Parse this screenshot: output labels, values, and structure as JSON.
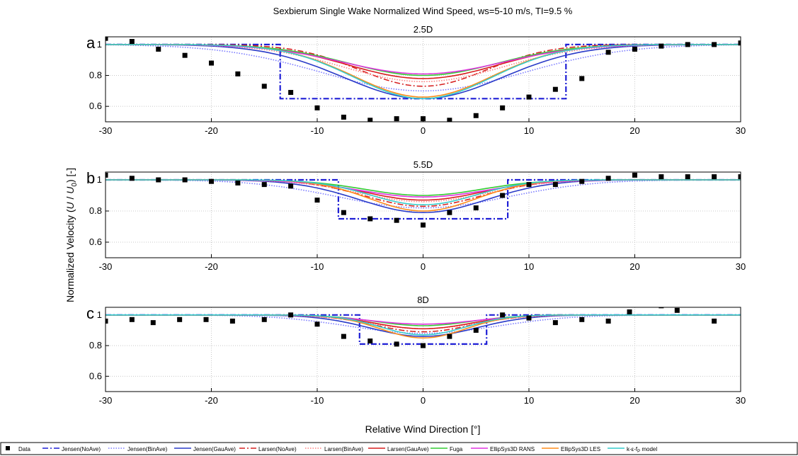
{
  "figure": {
    "title": "Sexbierum Single Wake Normalized Wind Speed, ws=5-10 m/s, TI=9.5 %",
    "ylabel_prefix": "Normalized Velocity (",
    "ylabel_u": "U",
    "ylabel_mid": " / ",
    "ylabel_u0": "U",
    "ylabel_sub": "0",
    "ylabel_suffix": ") [-]",
    "xlabel": "Relative Wind Direction [°]"
  },
  "legend": [
    {
      "label": "Data",
      "color": "#000000",
      "style": "marker"
    },
    {
      "label": "Jensen(NoAve)",
      "color": "#1f1fd6",
      "style": "dashdot"
    },
    {
      "label": "Jensen(BinAve)",
      "color": "#7a7aff",
      "style": "dot"
    },
    {
      "label": "Jensen(GauAve)",
      "color": "#2a3bc8",
      "style": "solid"
    },
    {
      "label": "Larsen(NoAve)",
      "color": "#d62020",
      "style": "dashdot"
    },
    {
      "label": "Larsen(BinAve)",
      "color": "#ff8080",
      "style": "dot"
    },
    {
      "label": "Larsen(GauAve)",
      "color": "#d81e1e",
      "style": "solid"
    },
    {
      "label": "Fuga",
      "color": "#33cc33",
      "style": "solid"
    },
    {
      "label": "EllipSys3D RANS",
      "color": "#e033e0",
      "style": "solid"
    },
    {
      "label": "EllipSys3D LES",
      "color": "#ff8c1a",
      "style": "solid"
    },
    {
      "label": "k-ε-fP model",
      "label_main": "k-ε-f",
      "label_sub": "P",
      "label_end": " model",
      "color": "#33cccc",
      "style": "solid"
    }
  ],
  "chart_data": [
    {
      "type": "line",
      "panel_letter": "a",
      "title": "2.5D",
      "xlim": [
        -30,
        30
      ],
      "ylim": [
        0.5,
        1.05
      ],
      "xticks": [
        -30,
        -20,
        -10,
        0,
        10,
        20,
        30
      ],
      "yticks": [
        0.6,
        0.8,
        1
      ],
      "grid": true,
      "measured": {
        "x": [
          -30,
          -27.5,
          -25,
          -22.5,
          -20,
          -17.5,
          -15,
          -12.5,
          -10,
          -7.5,
          -5,
          -2.5,
          0,
          2.5,
          5,
          7.5,
          10,
          12.5,
          15,
          17.5,
          20,
          22.5,
          25,
          27.5,
          30
        ],
        "y": [
          1.04,
          1.02,
          0.97,
          0.93,
          0.88,
          0.81,
          0.73,
          0.69,
          0.59,
          0.53,
          0.51,
          0.52,
          0.52,
          0.51,
          0.54,
          0.59,
          0.66,
          0.71,
          0.78,
          0.95,
          0.97,
          0.99,
          1.0,
          1.0,
          1.01
        ]
      },
      "series": [
        {
          "name": "Jensen(NoAve)",
          "kind": "step",
          "depth": 0.65,
          "half_width": 13.5
        },
        {
          "name": "Jensen(BinAve)",
          "kind": "gauss",
          "depth": 0.7,
          "sigma": 9.5
        },
        {
          "name": "Jensen(GauAve)",
          "kind": "gauss",
          "depth": 0.65,
          "sigma": 7.5
        },
        {
          "name": "Larsen(NoAve)",
          "kind": "gauss",
          "depth": 0.73,
          "sigma": 6.0
        },
        {
          "name": "Larsen(BinAve)",
          "kind": "gauss",
          "depth": 0.76,
          "sigma": 7.5
        },
        {
          "name": "Larsen(GauAve)",
          "kind": "gauss",
          "depth": 0.78,
          "sigma": 7.0
        },
        {
          "name": "Fuga",
          "kind": "gauss",
          "depth": 0.8,
          "sigma": 7.0
        },
        {
          "name": "EllipSys3D RANS",
          "kind": "gauss",
          "depth": 0.81,
          "sigma": 7.5
        },
        {
          "name": "EllipSys3D LES",
          "kind": "gauss",
          "depth": 0.66,
          "sigma": 6.5
        },
        {
          "name": "k-ε-fP model",
          "kind": "gauss",
          "depth": 0.65,
          "sigma": 6.5
        }
      ]
    },
    {
      "type": "line",
      "panel_letter": "b",
      "title": "5.5D",
      "xlim": [
        -30,
        30
      ],
      "ylim": [
        0.5,
        1.05
      ],
      "xticks": [
        -30,
        -20,
        -10,
        0,
        10,
        20,
        30
      ],
      "yticks": [
        0.6,
        0.8,
        1
      ],
      "grid": true,
      "measured": {
        "x": [
          -30,
          -27.5,
          -25,
          -22.5,
          -20,
          -17.5,
          -15,
          -12.5,
          -10,
          -7.5,
          -5,
          -2.5,
          0,
          2.5,
          5,
          7.5,
          10,
          12.5,
          15,
          17.5,
          20,
          22.5,
          25,
          27.5,
          30
        ],
        "y": [
          1.03,
          1.01,
          1.0,
          1.0,
          0.99,
          0.98,
          0.97,
          0.96,
          0.87,
          0.79,
          0.75,
          0.74,
          0.71,
          0.79,
          0.82,
          0.9,
          0.97,
          0.97,
          0.99,
          1.01,
          1.03,
          1.02,
          1.02,
          1.02,
          1.02
        ]
      },
      "series": [
        {
          "name": "Jensen(NoAve)",
          "kind": "step",
          "depth": 0.75,
          "half_width": 8.0
        },
        {
          "name": "Jensen(BinAve)",
          "kind": "gauss",
          "depth": 0.82,
          "sigma": 8.0
        },
        {
          "name": "Jensen(GauAve)",
          "kind": "gauss",
          "depth": 0.79,
          "sigma": 6.0
        },
        {
          "name": "Larsen(NoAve)",
          "kind": "gauss",
          "depth": 0.83,
          "sigma": 5.5
        },
        {
          "name": "Larsen(BinAve)",
          "kind": "gauss",
          "depth": 0.86,
          "sigma": 6.0
        },
        {
          "name": "Larsen(GauAve)",
          "kind": "gauss",
          "depth": 0.87,
          "sigma": 5.5
        },
        {
          "name": "Fuga",
          "kind": "gauss",
          "depth": 0.9,
          "sigma": 5.5
        },
        {
          "name": "EllipSys3D RANS",
          "kind": "gauss",
          "depth": 0.89,
          "sigma": 6.0
        },
        {
          "name": "EllipSys3D LES",
          "kind": "gauss",
          "depth": 0.8,
          "sigma": 5.0
        },
        {
          "name": "k-ε-fP model",
          "kind": "gauss",
          "depth": 0.84,
          "sigma": 5.0
        }
      ]
    },
    {
      "type": "line",
      "panel_letter": "c",
      "title": "8D",
      "xlim": [
        -30,
        30
      ],
      "ylim": [
        0.5,
        1.05
      ],
      "xticks": [
        -30,
        -20,
        -10,
        0,
        10,
        20,
        30
      ],
      "yticks": [
        0.6,
        0.8,
        1
      ],
      "grid": true,
      "measured": {
        "x": [
          -30,
          -27.5,
          -25.5,
          -23,
          -20.5,
          -18,
          -15,
          -12.5,
          -10,
          -7.5,
          -5,
          -2.5,
          0,
          2.5,
          5,
          7.5,
          10,
          12.5,
          15,
          17.5,
          19.5,
          22.5,
          24,
          27.5
        ],
        "y": [
          0.96,
          0.97,
          0.95,
          0.97,
          0.97,
          0.96,
          0.97,
          1.0,
          0.94,
          0.86,
          0.83,
          0.81,
          0.8,
          0.86,
          0.9,
          1.0,
          0.98,
          0.95,
          0.97,
          0.96,
          1.02,
          1.06,
          1.03,
          0.96
        ]
      },
      "series": [
        {
          "name": "Jensen(NoAve)",
          "kind": "step",
          "depth": 0.81,
          "half_width": 6.0
        },
        {
          "name": "Jensen(BinAve)",
          "kind": "gauss",
          "depth": 0.88,
          "sigma": 7.0
        },
        {
          "name": "Jensen(GauAve)",
          "kind": "gauss",
          "depth": 0.86,
          "sigma": 5.0
        },
        {
          "name": "Larsen(NoAve)",
          "kind": "gauss",
          "depth": 0.89,
          "sigma": 4.5
        },
        {
          "name": "Larsen(BinAve)",
          "kind": "gauss",
          "depth": 0.91,
          "sigma": 5.0
        },
        {
          "name": "Larsen(GauAve)",
          "kind": "gauss",
          "depth": 0.91,
          "sigma": 4.5
        },
        {
          "name": "Fuga",
          "kind": "gauss",
          "depth": 0.93,
          "sigma": 4.5
        },
        {
          "name": "EllipSys3D RANS",
          "kind": "gauss",
          "depth": 0.94,
          "sigma": 5.0
        },
        {
          "name": "EllipSys3D LES",
          "kind": "gauss",
          "depth": 0.85,
          "sigma": 4.0
        },
        {
          "name": "k-ε-fP model",
          "kind": "gauss",
          "depth": 0.87,
          "sigma": 4.0
        }
      ]
    }
  ]
}
